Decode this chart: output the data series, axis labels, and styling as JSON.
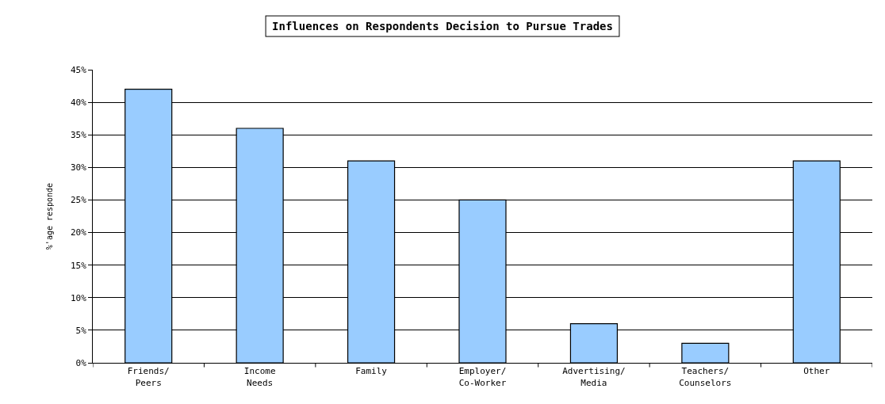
{
  "chart_data": {
    "type": "bar",
    "title": "Influences on Respondents Decision to Pursue Trades",
    "ylabel": "%'age responde",
    "categories": [
      "Friends/\nPeers",
      "Income\nNeeds",
      "Family",
      "Employer/\nCo-Worker",
      "Advertising/\nMedia",
      "Teachers/\nCounselors",
      "Other"
    ],
    "values": [
      42,
      36,
      31,
      25,
      6,
      3,
      31
    ],
    "color": "#99ccff",
    "ylim": [
      0,
      45
    ],
    "yticks": [
      {
        "value": 0,
        "label": "0%"
      },
      {
        "value": 5,
        "label": "5%"
      },
      {
        "value": 10,
        "label": "10%"
      },
      {
        "value": 15,
        "label": "15%"
      },
      {
        "value": 20,
        "label": "20%"
      },
      {
        "value": 25,
        "label": "25%"
      },
      {
        "value": 30,
        "label": "30%"
      },
      {
        "value": 35,
        "label": "35%"
      },
      {
        "value": 40,
        "label": "40%"
      },
      {
        "value": 45,
        "label": "45%"
      }
    ],
    "grid": "y"
  }
}
